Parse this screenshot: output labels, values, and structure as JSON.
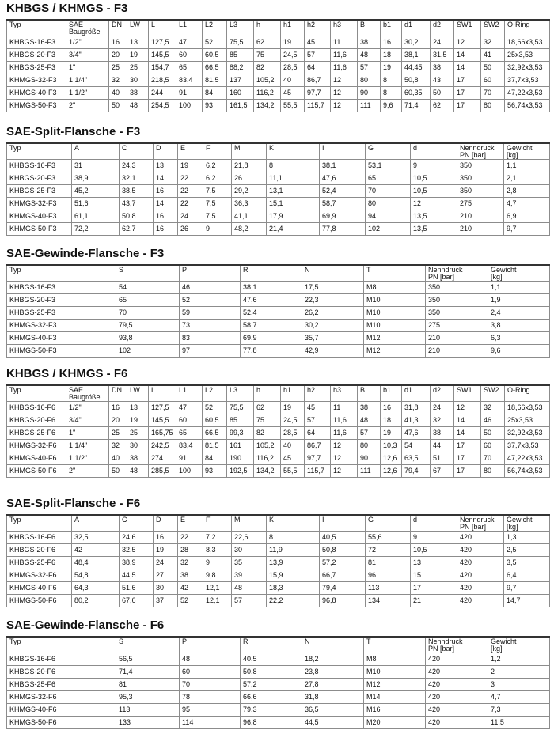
{
  "sections": [
    {
      "title": "KHBGS / KHMGS - F3",
      "table": {
        "header": [
          "Typ",
          "SAE\nBaugröße",
          "DN",
          "LW",
          "L",
          "L1",
          "L2",
          "L3",
          "h",
          "h1",
          "h2",
          "h3",
          "B",
          "b1",
          "d1",
          "d2",
          "SW1",
          "SW2",
          "O-Ring"
        ],
        "rows": [
          [
            "KHBGS-16-F3",
            "1/2\"",
            "16",
            "13",
            "127,5",
            "47",
            "52",
            "75,5",
            "62",
            "19",
            "45",
            "11",
            "38",
            "16",
            "30,2",
            "24",
            "12",
            "32",
            "18,66x3,53"
          ],
          [
            "KHBGS-20-F3",
            "3/4\"",
            "20",
            "19",
            "145,5",
            "60",
            "60,5",
            "85",
            "75",
            "24,5",
            "57",
            "11,6",
            "48",
            "18",
            "38,1",
            "31,5",
            "14",
            "41",
            "25x3,53"
          ],
          [
            "KHBGS-25-F3",
            "1\"",
            "25",
            "25",
            "154,7",
            "65",
            "66,5",
            "88,2",
            "82",
            "28,5",
            "64",
            "11,6",
            "57",
            "19",
            "44,45",
            "38",
            "14",
            "50",
            "32,92x3,53"
          ],
          [
            "KHMGS-32-F3",
            "1 1/4\"",
            "32",
            "30",
            "218,5",
            "83,4",
            "81,5",
            "137",
            "105,2",
            "40",
            "86,7",
            "12",
            "80",
            "8",
            "50,8",
            "43",
            "17",
            "60",
            "37,7x3,53"
          ],
          [
            "KHMGS-40-F3",
            "1 1/2\"",
            "40",
            "38",
            "244",
            "91",
            "84",
            "160",
            "116,2",
            "45",
            "97,7",
            "12",
            "90",
            "8",
            "60,35",
            "50",
            "17",
            "70",
            "47,22x3,53"
          ],
          [
            "KHMGS-50-F3",
            "2\"",
            "50",
            "48",
            "254,5",
            "100",
            "93",
            "161,5",
            "134,2",
            "55,5",
            "115,7",
            "12",
            "111",
            "9,6",
            "71,4",
            "62",
            "17",
            "80",
            "56,74x3,53"
          ]
        ]
      }
    },
    {
      "title": "SAE-Split-Flansche - F3",
      "table": {
        "header": [
          "Typ",
          "A",
          "C",
          "D",
          "E",
          "F",
          "M",
          "K",
          "I",
          "G",
          "d",
          "Nenndruck\nPN [bar]",
          "Gewicht\n[kg]"
        ],
        "rows": [
          [
            "KHBGS-16-F3",
            "31",
            "24,3",
            "13",
            "19",
            "6,2",
            "21,8",
            "8",
            "38,1",
            "53,1",
            "9",
            "350",
            "1,1"
          ],
          [
            "KHBGS-20-F3",
            "38,9",
            "32,1",
            "14",
            "22",
            "6,2",
            "26",
            "11,1",
            "47,6",
            "65",
            "10,5",
            "350",
            "2,1"
          ],
          [
            "KHBGS-25-F3",
            "45,2",
            "38,5",
            "16",
            "22",
            "7,5",
            "29,2",
            "13,1",
            "52,4",
            "70",
            "10,5",
            "350",
            "2,8"
          ],
          [
            "KHMGS-32-F3",
            "51,6",
            "43,7",
            "14",
            "22",
            "7,5",
            "36,3",
            "15,1",
            "58,7",
            "80",
            "12",
            "275",
            "4,7"
          ],
          [
            "KHMGS-40-F3",
            "61,1",
            "50,8",
            "16",
            "24",
            "7,5",
            "41,1",
            "17,9",
            "69,9",
            "94",
            "13,5",
            "210",
            "6,9"
          ],
          [
            "KHMGS-50-F3",
            "72,2",
            "62,7",
            "16",
            "26",
            "9",
            "48,2",
            "21,4",
            "77,8",
            "102",
            "13,5",
            "210",
            "9,7"
          ]
        ]
      }
    },
    {
      "title": "SAE-Gewinde-Flansche - F3",
      "table": {
        "header": [
          "Typ",
          "S",
          "P",
          "R",
          "N",
          "T",
          "Nenndruck\nPN [bar]",
          "Gewicht\n[kg]"
        ],
        "rows": [
          [
            "KHBGS-16-F3",
            "54",
            "46",
            "38,1",
            "17,5",
            "M8",
            "350",
            "1,1"
          ],
          [
            "KHBGS-20-F3",
            "65",
            "52",
            "47,6",
            "22,3",
            "M10",
            "350",
            "1,9"
          ],
          [
            "KHBGS-25-F3",
            "70",
            "59",
            "52,4",
            "26,2",
            "M10",
            "350",
            "2,4"
          ],
          [
            "KHMGS-32-F3",
            "79,5",
            "73",
            "58,7",
            "30,2",
            "M10",
            "275",
            "3,8"
          ],
          [
            "KHMGS-40-F3",
            "93,8",
            "83",
            "69,9",
            "35,7",
            "M12",
            "210",
            "6,3"
          ],
          [
            "KHMGS-50-F3",
            "102",
            "97",
            "77,8",
            "42,9",
            "M12",
            "210",
            "9,6"
          ]
        ]
      }
    },
    {
      "title": "KHBGS / KHMGS - F6",
      "table": {
        "header": [
          "Typ",
          "SAE\nBaugröße",
          "DN",
          "LW",
          "L",
          "L1",
          "L2",
          "L3",
          "h",
          "h1",
          "h2",
          "h3",
          "B",
          "b1",
          "d1",
          "d2",
          "SW1",
          "SW2",
          "O-Ring"
        ],
        "rows": [
          [
            "KHBGS-16-F6",
            "1/2\"",
            "16",
            "13",
            "127,5",
            "47",
            "52",
            "75,5",
            "62",
            "19",
            "45",
            "11",
            "38",
            "16",
            "31,8",
            "24",
            "12",
            "32",
            "18,66x3,53"
          ],
          [
            "KHBGS-20-F6",
            "3/4\"",
            "20",
            "19",
            "145,5",
            "60",
            "60,5",
            "85",
            "75",
            "24,5",
            "57",
            "11,6",
            "48",
            "18",
            "41,3",
            "32",
            "14",
            "46",
            "25x3,53"
          ],
          [
            "KHBGS-25-F6",
            "1\"",
            "25",
            "25",
            "165,75",
            "65",
            "66,5",
            "99,3",
            "82",
            "28,5",
            "64",
            "11,6",
            "57",
            "19",
            "47,6",
            "38",
            "14",
            "50",
            "32,92x3,53"
          ],
          [
            "KHMGS-32-F6",
            "1 1/4\"",
            "32",
            "30",
            "242,5",
            "83,4",
            "81,5",
            "161",
            "105,2",
            "40",
            "86,7",
            "12",
            "80",
            "10,3",
            "54",
            "44",
            "17",
            "60",
            "37,7x3,53"
          ],
          [
            "KHMGS-40-F6",
            "1 1/2\"",
            "40",
            "38",
            "274",
            "91",
            "84",
            "190",
            "116,2",
            "45",
            "97,7",
            "12",
            "90",
            "12,6",
            "63,5",
            "51",
            "17",
            "70",
            "47,22x3,53"
          ],
          [
            "KHMGS-50-F6",
            "2\"",
            "50",
            "48",
            "285,5",
            "100",
            "93",
            "192,5",
            "134,2",
            "55,5",
            "115,7",
            "12",
            "111",
            "12,6",
            "79,4",
            "67",
            "17",
            "80",
            "56,74x3,53"
          ]
        ]
      }
    },
    {
      "title": "SAE-Split-Flansche - F6",
      "table": {
        "header": [
          "Typ",
          "A",
          "C",
          "D",
          "E",
          "F",
          "M",
          "K",
          "I",
          "G",
          "d",
          "Nenndruck\nPN [bar]",
          "Gewicht\n[kg]"
        ],
        "rows": [
          [
            "KHBGS-16-F6",
            "32,5",
            "24,6",
            "16",
            "22",
            "7,2",
            "22,6",
            "8",
            "40,5",
            "55,6",
            "9",
            "420",
            "1,3"
          ],
          [
            "KHBGS-20-F6",
            "42",
            "32,5",
            "19",
            "28",
            "8,3",
            "30",
            "11,9",
            "50,8",
            "72",
            "10,5",
            "420",
            "2,5"
          ],
          [
            "KHBGS-25-F6",
            "48,4",
            "38,9",
            "24",
            "32",
            "9",
            "35",
            "13,9",
            "57,2",
            "81",
            "13",
            "420",
            "3,5"
          ],
          [
            "KHMGS-32-F6",
            "54,8",
            "44,5",
            "27",
            "38",
            "9,8",
            "39",
            "15,9",
            "66,7",
            "96",
            "15",
            "420",
            "6,4"
          ],
          [
            "KHMGS-40-F6",
            "64,3",
            "51,6",
            "30",
            "42",
            "12,1",
            "48",
            "18,3",
            "79,4",
            "113",
            "17",
            "420",
            "9,7"
          ],
          [
            "KHMGS-50-F6",
            "80,2",
            "67,6",
            "37",
            "52",
            "12,1",
            "57",
            "22,2",
            "96,8",
            "134",
            "21",
            "420",
            "14,7"
          ]
        ]
      }
    },
    {
      "title": "SAE-Gewinde-Flansche - F6",
      "table": {
        "header": [
          "Typ",
          "S",
          "P",
          "R",
          "N",
          "T",
          "Nenndruck\nPN [bar]",
          "Gewicht\n[kg]"
        ],
        "rows": [
          [
            "KHBGS-16-F6",
            "56,5",
            "48",
            "40,5",
            "18,2",
            "M8",
            "420",
            "1,2"
          ],
          [
            "KHBGS-20-F6",
            "71,4",
            "60",
            "50,8",
            "23,8",
            "M10",
            "420",
            "2"
          ],
          [
            "KHBGS-25-F6",
            "81",
            "70",
            "57,2",
            "27,8",
            "M12",
            "420",
            "3"
          ],
          [
            "KHMGS-32-F6",
            "95,3",
            "78",
            "66,6",
            "31,8",
            "M14",
            "420",
            "4,7"
          ],
          [
            "KHMGS-40-F6",
            "113",
            "95",
            "79,3",
            "36,5",
            "M16",
            "420",
            "7,3"
          ],
          [
            "KHMGS-50-F6",
            "133",
            "114",
            "96,8",
            "44,5",
            "M20",
            "420",
            "11,5"
          ]
        ]
      }
    }
  ]
}
